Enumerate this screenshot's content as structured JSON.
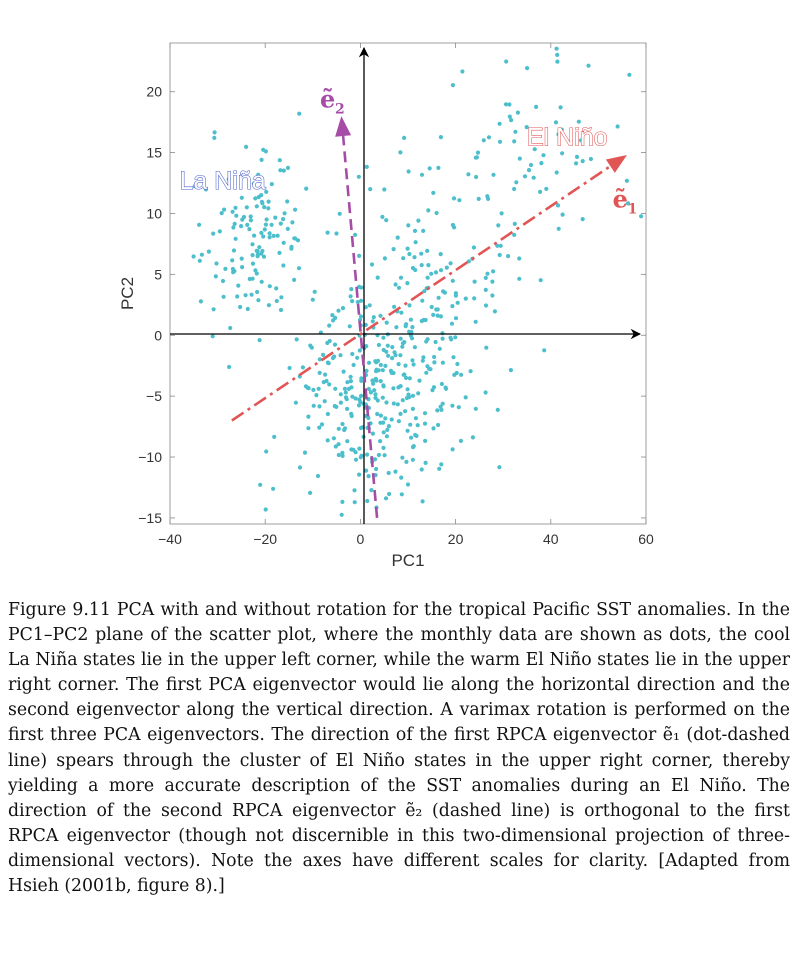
{
  "chart_data": {
    "type": "scatter",
    "xlabel": "PC1",
    "ylabel": "PC2",
    "xlim": [
      -40,
      60
    ],
    "ylim": [
      -15.5,
      24
    ],
    "xticks": [
      "-40",
      "-20",
      "0",
      "20",
      "40",
      "60"
    ],
    "yticks": [
      "-15",
      "-10",
      "-5",
      "0",
      "5",
      "10",
      "15",
      "20"
    ],
    "xtick_values": [
      -40,
      -20,
      0,
      20,
      40,
      60
    ],
    "ytick_values": [
      -15,
      -10,
      -5,
      0,
      5,
      10,
      15,
      20
    ],
    "grid": false,
    "point_color": "#4dbfcc",
    "annotations": {
      "la_nina": {
        "text": "La Niña",
        "x": -38,
        "y": 12,
        "color": "#4a5fc9"
      },
      "el_nino": {
        "text": "El Niño",
        "x": 35,
        "y": 15.6,
        "color": "#e25555"
      }
    },
    "vectors": {
      "e1": {
        "label": "ẽ",
        "sub": "1",
        "from": [
          -27,
          -7
        ],
        "to": [
          56,
          14.8
        ],
        "color": "#e25555",
        "style": "dash-dot",
        "label_pos": [
          53,
          10.5
        ]
      },
      "e2": {
        "label": "ẽ",
        "sub": "2",
        "from": [
          3.5,
          -15
        ],
        "to": [
          -4,
          18
        ],
        "color": "#a64ca6",
        "style": "dashed",
        "label_pos": [
          -8.5,
          18.7
        ]
      }
    },
    "clusters": [
      {
        "cx": -22,
        "cy": 8,
        "sx": 6,
        "sy": 3.5,
        "n": 130
      },
      {
        "cx": 2,
        "cy": -6,
        "sx": 9,
        "sy": 4,
        "n": 230
      },
      {
        "cx": 10,
        "cy": 0,
        "sx": 10,
        "sy": 3.5,
        "n": 130
      },
      {
        "cx": 35,
        "cy": 15,
        "sx": 12,
        "sy": 4.5,
        "n": 70
      },
      {
        "cx": 15,
        "cy": 7,
        "sx": 10,
        "sy": 4,
        "n": 70
      }
    ]
  },
  "caption": {
    "label": "Figure 9.11",
    "text": "PCA with and without rotation for the tropical Pacific SST anomalies. In the PC1–PC2 plane of the scatter plot, where the monthly data are shown as dots, the cool La Niña states lie in the upper left corner, while the warm El Niño states lie in the upper right corner. The first PCA eigenvector would lie along the horizontal direction and the second eigenvector along the vertical direction. A varimax rotation is performed on the first three PCA eigenvectors. The direction of the first RPCA eigenvector ẽ₁ (dot-dashed line) spears through the cluster of El Niño states in the upper right corner, thereby yielding a more accurate description of the SST anomalies during an El Niño. The direction of the second RPCA eigenvector ẽ₂ (dashed line) is orthogonal to the first RPCA eigenvector (though not discernible in this two-dimensional projection of three-dimensional vectors). Note the axes have different scales for clarity. [Adapted from Hsieh (2001b, figure 8).]"
  }
}
